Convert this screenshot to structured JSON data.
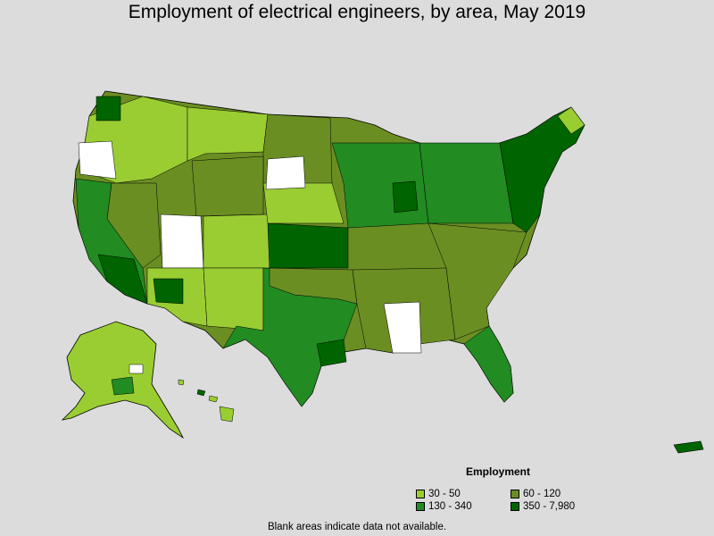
{
  "title": "Employment of electrical engineers, by area, May 2019",
  "legend": {
    "title": "Employment",
    "items": [
      {
        "label": "30 - 50",
        "color": "#9acd32"
      },
      {
        "label": "60 - 120",
        "color": "#6b8e23"
      },
      {
        "label": "130 - 340",
        "color": "#228b22"
      },
      {
        "label": "350 - 7,980",
        "color": "#006400"
      }
    ]
  },
  "note": "Blank areas indicate data not available.",
  "colors": {
    "background": "#dcdcdc",
    "no_data": "#ffffff",
    "border": "#000000"
  }
}
